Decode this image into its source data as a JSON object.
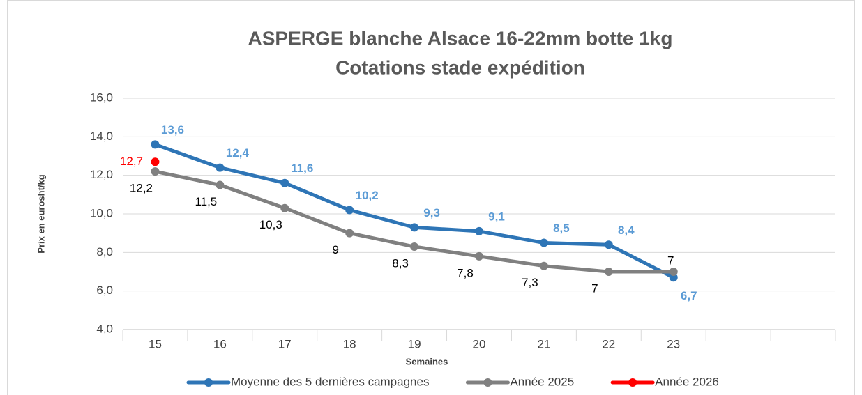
{
  "chart_data": {
    "type": "line",
    "title": "ASPERGE blanche Alsace 16-22mm botte 1kg",
    "subtitle": "Cotations stade expédition",
    "x_label": "Semaines",
    "y_label": "Prix en eurosht/kg",
    "categories": [
      "15",
      "16",
      "17",
      "18",
      "19",
      "20",
      "21",
      "22",
      "23",
      null,
      null
    ],
    "ylim": [
      4,
      16
    ],
    "yticks": [
      {
        "value": 4,
        "label": "4,0"
      },
      {
        "value": 6,
        "label": "6,0"
      },
      {
        "value": 8,
        "label": "8,0"
      },
      {
        "value": 10,
        "label": "10,0"
      },
      {
        "value": 12,
        "label": "12,0"
      },
      {
        "value": 14,
        "label": "14,0"
      },
      {
        "value": 16,
        "label": "16,0"
      }
    ],
    "grid": true,
    "legend": "bottom",
    "series": [
      {
        "name": "Moyenne des 5 dernières campagnes",
        "color": "#2e75b6",
        "label_color": "#5b9bd5",
        "values": [
          13.6,
          12.4,
          11.6,
          10.2,
          9.3,
          9.1,
          8.5,
          8.4,
          6.7,
          null,
          null
        ],
        "value_labels": [
          "13,6",
          "12,4",
          "11,6",
          "10,2",
          "9,3",
          "9,1",
          "8,5",
          "8,4",
          "6,7",
          null,
          null
        ]
      },
      {
        "name": "Année 2025",
        "color": "#808080",
        "label_color": "#000000",
        "values": [
          12.2,
          11.5,
          10.3,
          9,
          8.3,
          7.8,
          7.3,
          7,
          7,
          null,
          null
        ],
        "value_labels": [
          "12,2",
          "11,5",
          "10,3",
          "9",
          "8,3",
          "7,8",
          "7,3",
          "7",
          "7",
          null,
          null
        ]
      },
      {
        "name": "Année 2026",
        "color": "#ff0000",
        "label_color": "#ff0000",
        "values": [
          12.7,
          null,
          null,
          null,
          null,
          null,
          null,
          null,
          null,
          null,
          null
        ],
        "value_labels": [
          "12,7",
          null,
          null,
          null,
          null,
          null,
          null,
          null,
          null,
          null,
          null
        ]
      }
    ]
  }
}
